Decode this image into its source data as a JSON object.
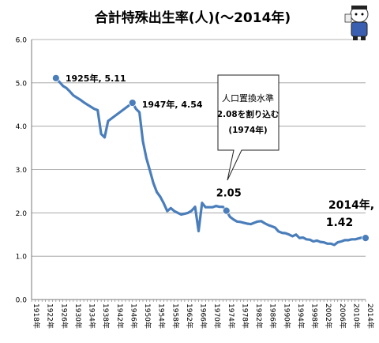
{
  "chart_data": {
    "type": "line",
    "title": "合計特殊出生率(人)(～2014年)",
    "xlabel": "",
    "ylabel": "",
    "xlim": [
      1918,
      2014
    ],
    "ylim": [
      0,
      6
    ],
    "yticks": [
      0,
      1,
      2,
      3,
      4,
      5,
      6
    ],
    "ytick_labels": [
      "0.0",
      "1.0",
      "2.0",
      "3.0",
      "4.0",
      "5.0",
      "6.0"
    ],
    "xtick_labels": [
      "1918年",
      "1922年",
      "1926年",
      "1930年",
      "1934年",
      "1938年",
      "1942年",
      "1946年",
      "1950年",
      "1954年",
      "1958年",
      "1962年",
      "1966年",
      "1970年",
      "1974年",
      "1978年",
      "1982年",
      "1986年",
      "1990年",
      "1994年",
      "1998年",
      "2002年",
      "2006年",
      "2010年",
      "2014年"
    ],
    "grid": "horizontal",
    "legend": "none",
    "line_color": "#4a7ebb",
    "series": [
      {
        "x": [
          1925,
          1926,
          1927,
          1928,
          1929,
          1930,
          1931,
          1932,
          1933,
          1934,
          1935,
          1936,
          1937,
          1938,
          1939,
          1940,
          1947,
          1948,
          1949,
          1950,
          1951,
          1952,
          1953,
          1954,
          1955,
          1956,
          1957,
          1958,
          1959,
          1960,
          1961,
          1962,
          1963,
          1964,
          1965,
          1966,
          1967,
          1968,
          1969,
          1970,
          1971,
          1972,
          1973,
          1974,
          1975,
          1976,
          1977,
          1978,
          1979,
          1980,
          1981,
          1982,
          1983,
          1984,
          1985,
          1986,
          1987,
          1988,
          1989,
          1990,
          1991,
          1992,
          1993,
          1994,
          1995,
          1996,
          1997,
          1998,
          1999,
          2000,
          2001,
          2002,
          2003,
          2004,
          2005,
          2006,
          2007,
          2008,
          2009,
          2010,
          2011,
          2012,
          2013,
          2014
        ],
        "values": [
          5.11,
          5.02,
          4.93,
          4.88,
          4.8,
          4.71,
          4.66,
          4.61,
          4.55,
          4.5,
          4.45,
          4.4,
          4.37,
          3.82,
          3.74,
          4.12,
          4.54,
          4.4,
          4.32,
          3.65,
          3.26,
          2.98,
          2.69,
          2.48,
          2.37,
          2.22,
          2.04,
          2.11,
          2.04,
          2.0,
          1.96,
          1.98,
          2.0,
          2.05,
          2.14,
          1.58,
          2.23,
          2.13,
          2.13,
          2.13,
          2.16,
          2.14,
          2.14,
          2.05,
          1.91,
          1.85,
          1.8,
          1.79,
          1.77,
          1.75,
          1.74,
          1.77,
          1.8,
          1.81,
          1.76,
          1.72,
          1.69,
          1.66,
          1.57,
          1.54,
          1.53,
          1.5,
          1.46,
          1.5,
          1.42,
          1.43,
          1.39,
          1.38,
          1.34,
          1.36,
          1.33,
          1.32,
          1.29,
          1.29,
          1.26,
          1.32,
          1.34,
          1.37,
          1.37,
          1.39,
          1.39,
          1.41,
          1.43,
          1.42
        ]
      }
    ],
    "highlight_points": [
      {
        "x": 1925,
        "y": 5.11,
        "label": "1925年, 5.11"
      },
      {
        "x": 1947,
        "y": 4.54,
        "label": "1947年, 4.54"
      },
      {
        "x": 1974,
        "y": 2.05,
        "label": "2.05"
      },
      {
        "x": 2014,
        "y": 1.42,
        "label_lines": [
          "2014年,",
          "1.42"
        ]
      }
    ],
    "callout": {
      "lines": [
        "人口置換水準",
        "2.08を割り込む",
        "(1974年)"
      ]
    },
    "mascot": {
      "icon": "mascot-icon"
    }
  }
}
